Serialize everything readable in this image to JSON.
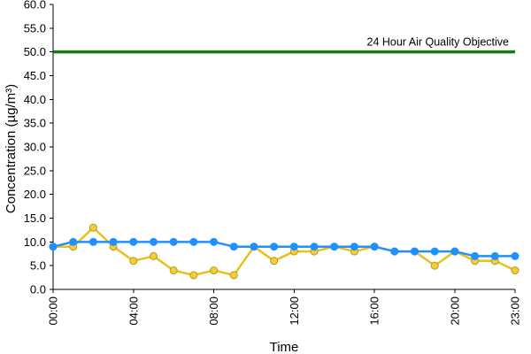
{
  "chart_data": {
    "type": "line",
    "title": "",
    "xlabel": "Time",
    "ylabel": "Concentration (µg/m³)",
    "x": [
      0,
      1,
      2,
      3,
      4,
      5,
      6,
      7,
      8,
      9,
      10,
      11,
      12,
      13,
      14,
      15,
      16,
      17,
      18,
      19,
      20,
      21,
      22,
      23
    ],
    "xlim": [
      0,
      23
    ],
    "ylim": [
      0,
      60
    ],
    "x_ticks": [
      {
        "value": 0,
        "label": "00:00"
      },
      {
        "value": 4,
        "label": "04:00"
      },
      {
        "value": 8,
        "label": "08:00"
      },
      {
        "value": 12,
        "label": "12:00"
      },
      {
        "value": 16,
        "label": "16:00"
      },
      {
        "value": 20,
        "label": "20:00"
      },
      {
        "value": 23,
        "label": "23:00"
      }
    ],
    "y_ticks": [
      {
        "value": 0,
        "label": "0.0"
      },
      {
        "value": 5,
        "label": "5.0"
      },
      {
        "value": 10,
        "label": "10.0"
      },
      {
        "value": 15,
        "label": "15.0"
      },
      {
        "value": 20,
        "label": "20.0"
      },
      {
        "value": 25,
        "label": "25.0"
      },
      {
        "value": 30,
        "label": "30.0"
      },
      {
        "value": 35,
        "label": "35.0"
      },
      {
        "value": 40,
        "label": "40.0"
      },
      {
        "value": 45,
        "label": "45.0"
      },
      {
        "value": 50,
        "label": "50.0"
      },
      {
        "value": 55,
        "label": "55.0"
      },
      {
        "value": 60,
        "label": "60.0"
      }
    ],
    "grid": false,
    "legend": "none",
    "series": [
      {
        "key": "yellow",
        "color": "#e8c11c",
        "marker_fill": "#f4cd3c",
        "marker_stroke": "#b89a18",
        "values": [
          9,
          9,
          13,
          9,
          6,
          7,
          4,
          3,
          4,
          3,
          9,
          6,
          8,
          8,
          9,
          8,
          9,
          8,
          8,
          5,
          8,
          6,
          6,
          4
        ]
      },
      {
        "key": "blue",
        "color": "#1e90ff",
        "marker_fill": "#1e90ff",
        "marker_stroke": "#1e90ff",
        "values": [
          9,
          10,
          10,
          10,
          10,
          10,
          10,
          10,
          10,
          9,
          9,
          9,
          9,
          9,
          9,
          9,
          9,
          8,
          8,
          8,
          8,
          7,
          7,
          7
        ]
      }
    ],
    "reference_line": {
      "value": 50,
      "label": "24 Hour Air Quality Objective",
      "color": "#1a7a1a"
    }
  }
}
